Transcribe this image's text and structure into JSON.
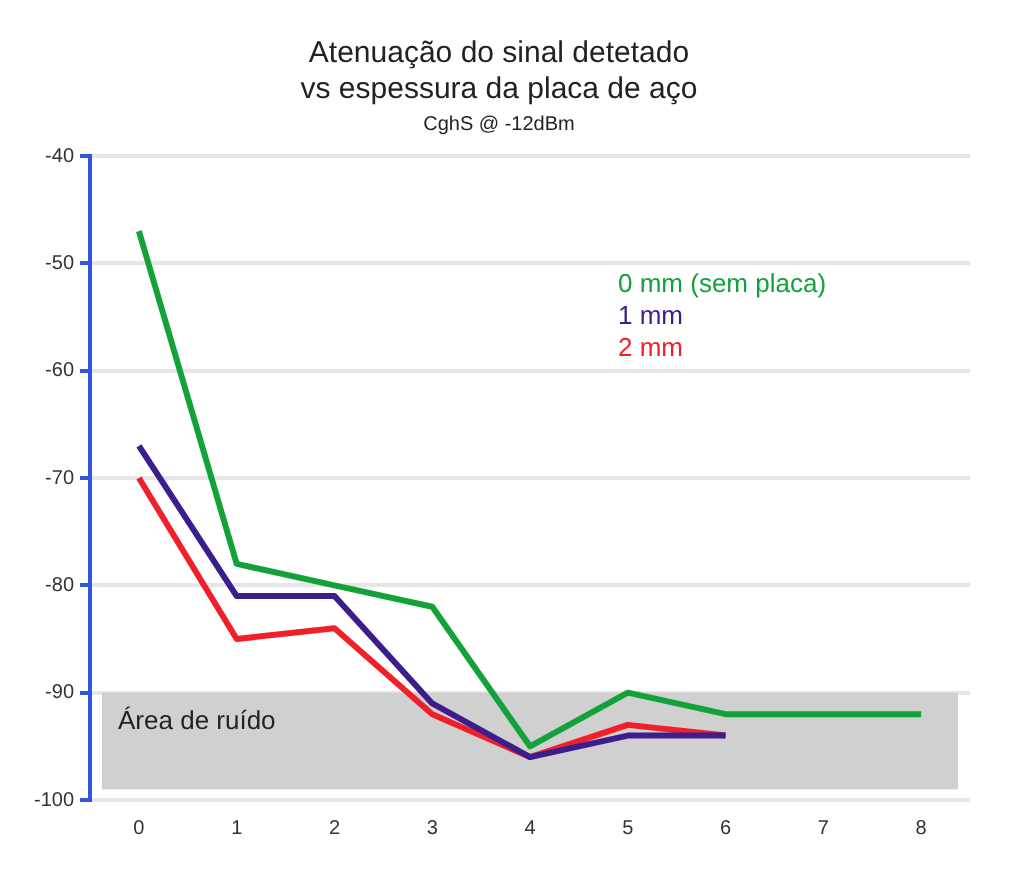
{
  "chart_data": {
    "type": "line",
    "title": [
      "Atenuação do sinal detetado",
      "vs espessura da placa de aço"
    ],
    "subtitle": "CghS @ -12dBm",
    "categories": [
      "0",
      "1",
      "2",
      "3",
      "4",
      "5",
      "6",
      "7",
      "8"
    ],
    "series": [
      {
        "name": "0 mm (sem placa)",
        "color": "#13a13a",
        "values": [
          -47,
          -78,
          -80,
          -82,
          -95,
          -90,
          -92,
          -92,
          -92
        ]
      },
      {
        "name": "1 mm",
        "color": "#3c1d8c",
        "values": [
          -67,
          -81,
          -81,
          -91,
          -96,
          -94,
          -94,
          null,
          null
        ]
      },
      {
        "name": "2 mm",
        "color": "#f0202a",
        "values": [
          -70,
          -85,
          -84,
          -92,
          -96,
          -93,
          -94,
          null,
          null
        ]
      }
    ],
    "ylim": [
      -100,
      -40
    ],
    "yticks": [
      -100,
      -90,
      -80,
      -70,
      -60,
      -50,
      -40
    ],
    "grid": "y",
    "legend": "top right",
    "marker": "none",
    "bands": [
      {
        "axis": "y",
        "from": -99,
        "to": -90,
        "color": "#d0d0d0"
      }
    ],
    "annotations": [
      "Área de ruído"
    ]
  }
}
